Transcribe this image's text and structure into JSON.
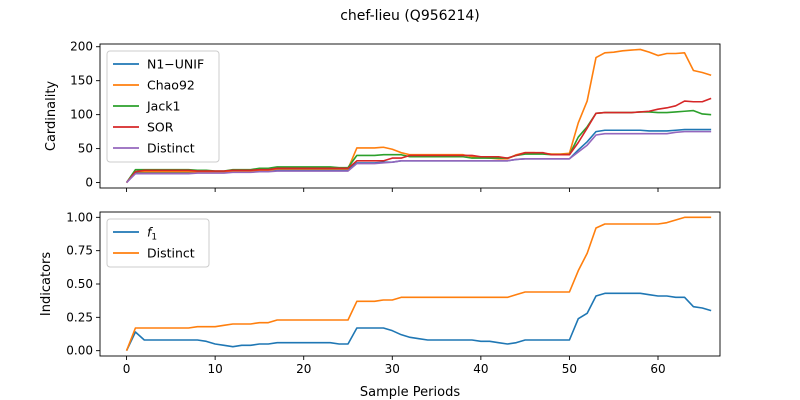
{
  "title": "chef-lieu (Q956214)",
  "chart_data": [
    {
      "type": "line",
      "xlabel": "",
      "ylabel": "Cardinality",
      "xlim": [
        -3,
        67
      ],
      "ylim": [
        -8,
        204
      ],
      "yticks": [
        0,
        50,
        100,
        150,
        200
      ],
      "xticks": [
        0,
        10,
        20,
        30,
        40,
        50,
        60
      ],
      "show_xtick_labels": false,
      "legend_position": "upper left",
      "series": [
        {
          "name": "N1−UNIF",
          "color": "#1f77b4",
          "values": [
            0,
            15,
            15,
            15,
            15,
            15,
            15,
            15,
            15,
            15,
            15,
            15,
            16,
            16,
            16,
            17,
            17,
            19,
            19,
            19,
            19,
            19,
            19,
            19,
            19,
            19,
            29,
            29,
            29,
            30,
            30,
            32,
            32,
            32,
            32,
            32,
            32,
            32,
            32,
            32,
            32,
            32,
            32,
            32,
            34,
            35,
            35,
            35,
            35,
            35,
            35,
            48,
            60,
            75,
            77,
            77,
            77,
            77,
            77,
            76,
            76,
            76,
            77,
            78,
            78,
            78,
            78
          ]
        },
        {
          "name": "Chao92",
          "color": "#ff7f0e",
          "values": [
            0,
            16,
            16,
            16,
            16,
            16,
            16,
            16,
            16,
            16,
            16,
            16,
            17,
            17,
            17,
            18,
            18,
            20,
            20,
            20,
            20,
            20,
            20,
            20,
            20,
            20,
            51,
            51,
            51,
            52,
            49,
            44,
            41,
            41,
            41,
            41,
            41,
            41,
            41,
            38,
            37,
            36,
            35,
            35,
            41,
            44,
            44,
            43,
            42,
            42,
            43,
            88,
            120,
            184,
            191,
            192,
            194,
            195,
            196,
            192,
            187,
            190,
            190,
            191,
            165,
            162,
            158
          ]
        },
        {
          "name": "Jack1",
          "color": "#2ca02c",
          "values": [
            0,
            19,
            19,
            19,
            19,
            19,
            19,
            19,
            18,
            18,
            17,
            17,
            19,
            19,
            19,
            21,
            21,
            23,
            23,
            23,
            23,
            23,
            23,
            23,
            22,
            22,
            40,
            40,
            40,
            41,
            41,
            41,
            38,
            38,
            38,
            38,
            38,
            38,
            38,
            36,
            36,
            36,
            36,
            36,
            40,
            42,
            42,
            42,
            41,
            41,
            41,
            67,
            82,
            102,
            103,
            103,
            103,
            103,
            104,
            104,
            103,
            103,
            104,
            105,
            106,
            101,
            100
          ]
        },
        {
          "name": "SOR",
          "color": "#d62728",
          "values": [
            0,
            16,
            18,
            18,
            18,
            18,
            18,
            18,
            17,
            17,
            17,
            17,
            18,
            18,
            18,
            19,
            19,
            21,
            21,
            21,
            21,
            21,
            21,
            21,
            21,
            21,
            32,
            32,
            32,
            32,
            36,
            36,
            40,
            40,
            40,
            40,
            40,
            40,
            40,
            40,
            38,
            38,
            38,
            36,
            40,
            44,
            44,
            44,
            41,
            41,
            41,
            59,
            80,
            102,
            103,
            103,
            103,
            103,
            104,
            105,
            108,
            110,
            113,
            120,
            119,
            119,
            124
          ]
        },
        {
          "name": "Distinct",
          "color": "#9467bd",
          "values": [
            0,
            13,
            13,
            13,
            13,
            13,
            13,
            13,
            14,
            14,
            14,
            14,
            15,
            15,
            15,
            16,
            16,
            17,
            17,
            17,
            17,
            17,
            17,
            17,
            17,
            17,
            28,
            28,
            28,
            29,
            30,
            32,
            32,
            32,
            32,
            32,
            32,
            32,
            32,
            32,
            32,
            32,
            32,
            32,
            34,
            35,
            35,
            35,
            35,
            35,
            35,
            45,
            55,
            70,
            72,
            72,
            72,
            72,
            72,
            72,
            72,
            72,
            74,
            75,
            75,
            75,
            75
          ]
        }
      ]
    },
    {
      "type": "line",
      "xlabel": "Sample Periods",
      "ylabel": "Indicators",
      "xlim": [
        -3,
        67
      ],
      "ylim": [
        -0.04,
        1.04
      ],
      "yticks": [
        0.0,
        0.25,
        0.5,
        0.75,
        1.0
      ],
      "ytick_labels": [
        "0.00",
        "0.25",
        "0.50",
        "0.75",
        "1.00"
      ],
      "xticks": [
        0,
        10,
        20,
        30,
        40,
        50,
        60
      ],
      "xtick_labels": [
        "0",
        "10",
        "20",
        "30",
        "40",
        "50",
        "60"
      ],
      "show_xtick_labels": true,
      "legend_position": "upper left",
      "series": [
        {
          "name": "f",
          "name_sub": "1",
          "color": "#1f77b4",
          "values": [
            0.0,
            0.14,
            0.08,
            0.08,
            0.08,
            0.08,
            0.08,
            0.08,
            0.08,
            0.07,
            0.05,
            0.04,
            0.03,
            0.04,
            0.04,
            0.05,
            0.05,
            0.06,
            0.06,
            0.06,
            0.06,
            0.06,
            0.06,
            0.06,
            0.05,
            0.05,
            0.17,
            0.17,
            0.17,
            0.17,
            0.15,
            0.12,
            0.1,
            0.09,
            0.08,
            0.08,
            0.08,
            0.08,
            0.08,
            0.08,
            0.07,
            0.07,
            0.06,
            0.05,
            0.06,
            0.08,
            0.08,
            0.08,
            0.08,
            0.08,
            0.08,
            0.24,
            0.28,
            0.41,
            0.43,
            0.43,
            0.43,
            0.43,
            0.43,
            0.42,
            0.41,
            0.41,
            0.4,
            0.4,
            0.33,
            0.32,
            0.3
          ]
        },
        {
          "name": "Distinct",
          "color": "#ff7f0e",
          "values": [
            0.0,
            0.17,
            0.17,
            0.17,
            0.17,
            0.17,
            0.17,
            0.17,
            0.18,
            0.18,
            0.18,
            0.19,
            0.2,
            0.2,
            0.2,
            0.21,
            0.21,
            0.23,
            0.23,
            0.23,
            0.23,
            0.23,
            0.23,
            0.23,
            0.23,
            0.23,
            0.37,
            0.37,
            0.37,
            0.38,
            0.38,
            0.4,
            0.4,
            0.4,
            0.4,
            0.4,
            0.4,
            0.4,
            0.4,
            0.4,
            0.4,
            0.4,
            0.4,
            0.4,
            0.42,
            0.44,
            0.44,
            0.44,
            0.44,
            0.44,
            0.44,
            0.6,
            0.73,
            0.92,
            0.95,
            0.95,
            0.95,
            0.95,
            0.95,
            0.95,
            0.95,
            0.96,
            0.98,
            1.0,
            1.0,
            1.0,
            1.0
          ]
        }
      ]
    }
  ]
}
